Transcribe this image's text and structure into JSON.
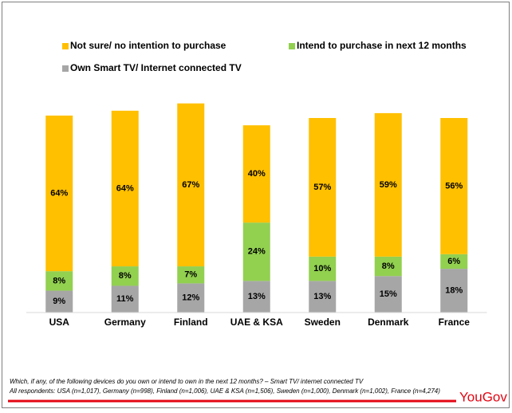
{
  "chart_data": {
    "type": "stacked-bar",
    "categories": [
      "USA",
      "Germany",
      "Finland",
      "UAE & KSA",
      "Sweden",
      "Denmark",
      "France"
    ],
    "series": [
      {
        "name": "Own Smart TV/ Internet connected TV",
        "color": "#a6a6a6",
        "values": [
          9,
          11,
          12,
          13,
          13,
          15,
          18
        ],
        "value_labels": [
          "9%",
          "11%",
          "12%",
          "13%",
          "13%",
          "15%",
          "18%"
        ]
      },
      {
        "name": "Intend to purchase in next 12 months",
        "color": "#92d050",
        "values": [
          8,
          8,
          7,
          24,
          10,
          8,
          6
        ],
        "value_labels": [
          "8%",
          "8%",
          "7%",
          "24%",
          "10%",
          "8%",
          "6%"
        ]
      },
      {
        "name": "Not sure/ no intention to purchase",
        "color": "#ffc000",
        "values": [
          64,
          64,
          67,
          40,
          57,
          59,
          56
        ],
        "value_labels": [
          "64%",
          "64%",
          "67%",
          "40%",
          "57%",
          "59%",
          "56%"
        ]
      }
    ]
  },
  "footer": {
    "notes": [
      "Which, if any, of the following devices do you own or intend to own in the next 12 months? – Smart TV/ internet connected TV",
      "All respondents: USA (n=1,017), Germany (n=998), Finland (n=1,006), UAE & KSA (n=1,506), Sweden (n=1,000), Denmark (n=1,002), France (n=4,274)"
    ],
    "logo": "YouGov"
  }
}
